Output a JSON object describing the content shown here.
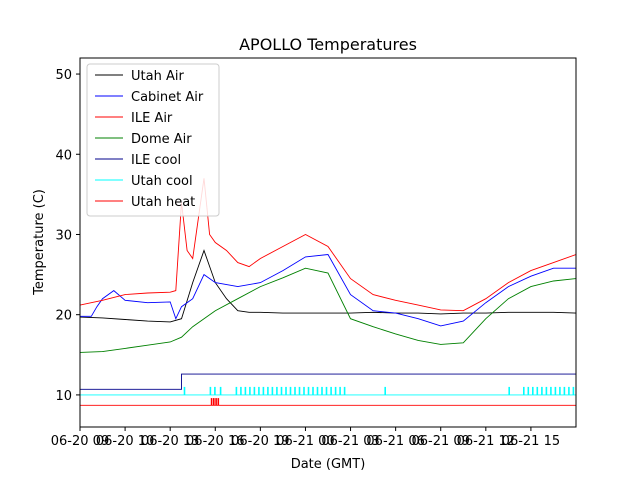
{
  "chart_data": {
    "type": "line",
    "title": "APOLLO Temperatures",
    "xlabel": "Date (GMT)",
    "ylabel": "Temperature (C)",
    "xlim": [
      0,
      44
    ],
    "ylim": [
      6,
      52
    ],
    "y_ticks": [
      10,
      20,
      30,
      40,
      50
    ],
    "x_tick_positions": [
      0,
      4,
      8,
      12,
      16,
      20,
      24,
      28,
      32,
      36,
      40
    ],
    "x_tick_labels": [
      "06-20 09",
      "06-20 10",
      "06-20 13",
      "06-20 16",
      "06-20 19",
      "06-21 00",
      "06-21 03",
      "06-21 06",
      "06-21 09",
      "06-21 12",
      "06-21 15"
    ],
    "x_tick_labels_note": "x_units_are_hours_from_start",
    "legend_position": "upper-left",
    "series": [
      {
        "name": "Utah Air",
        "color": "#000000",
        "x": [
          0,
          2,
          4,
          6,
          8,
          9,
          10,
          11,
          12,
          13,
          14,
          15,
          16,
          18,
          20,
          22,
          24,
          26,
          28,
          30,
          32,
          34,
          36,
          38,
          40,
          42,
          44
        ],
        "y": [
          19.7,
          19.6,
          19.4,
          19.2,
          19.1,
          19.5,
          24,
          28,
          24,
          22,
          20.5,
          20.3,
          20.3,
          20.2,
          20.2,
          20.2,
          20.2,
          20.3,
          20.2,
          20.2,
          20.1,
          20.2,
          20.2,
          20.3,
          20.3,
          20.3,
          20.2
        ]
      },
      {
        "name": "Cabinet Air",
        "color": "#0000ff",
        "x": [
          0,
          1,
          1.5,
          2,
          3,
          4,
          6,
          8,
          8.5,
          9,
          10,
          11,
          12,
          14,
          16,
          18,
          20,
          22,
          24,
          26,
          28,
          30,
          32,
          34,
          36,
          38,
          40,
          42,
          44
        ],
        "y": [
          19.8,
          19.8,
          21,
          22,
          23,
          21.8,
          21.5,
          21.6,
          19.5,
          21,
          22,
          25,
          24,
          23.5,
          24,
          25.5,
          27.2,
          27.5,
          22.5,
          20.5,
          20.2,
          19.5,
          18.6,
          19.2,
          21.5,
          23.5,
          24.8,
          25.8,
          25.8
        ]
      },
      {
        "name": "ILE Air",
        "color": "#ff0000",
        "x": [
          0,
          2,
          4,
          6,
          8,
          8.5,
          9,
          9.5,
          10,
          11,
          11.5,
          12,
          13,
          14,
          15,
          16,
          18,
          20,
          22,
          24,
          26,
          28,
          30,
          32,
          34,
          36,
          38,
          40,
          42,
          44
        ],
        "y": [
          21.2,
          21.8,
          22.5,
          22.7,
          22.8,
          23,
          34,
          28,
          27,
          37,
          30,
          29,
          28,
          26.5,
          26,
          27,
          28.5,
          30,
          28.5,
          24.5,
          22.5,
          21.8,
          21.2,
          20.6,
          20.5,
          22,
          24,
          25.5,
          26.5,
          27.5
        ]
      },
      {
        "name": "Dome Air",
        "color": "#008000",
        "x": [
          0,
          2,
          4,
          6,
          8,
          9,
          10,
          12,
          14,
          16,
          18,
          20,
          22,
          24,
          26,
          28,
          30,
          32,
          34,
          36,
          38,
          40,
          42,
          44
        ],
        "y": [
          15.3,
          15.4,
          15.8,
          16.2,
          16.6,
          17.2,
          18.5,
          20.5,
          22,
          23.5,
          24.6,
          25.8,
          25.2,
          19.5,
          18.5,
          17.6,
          16.8,
          16.3,
          16.5,
          19.5,
          22,
          23.5,
          24.2,
          24.5
        ]
      },
      {
        "name": "ILE cool",
        "color": "#00008b",
        "x": [
          0,
          9,
          9,
          44
        ],
        "y": [
          10.7,
          10.7,
          12.6,
          12.6
        ]
      },
      {
        "name": "Utah cool",
        "color": "#00ffff",
        "x": [
          0,
          44
        ],
        "y": [
          10,
          10
        ],
        "pulses": [
          9.2,
          11.5,
          11.9,
          12.4,
          13.8,
          14.2,
          14.6,
          15.0,
          15.4,
          15.8,
          16.2,
          16.6,
          17.0,
          17.4,
          17.8,
          18.2,
          18.6,
          19.0,
          19.4,
          19.8,
          20.2,
          20.6,
          21.0,
          21.4,
          21.8,
          22.2,
          22.6,
          23.0,
          23.4,
          27.0,
          38.0,
          39.3,
          39.7,
          40.1,
          40.5,
          40.9,
          41.3,
          41.7,
          42.1,
          42.5,
          42.9,
          43.3,
          43.7
        ],
        "pulse_top": 11
      },
      {
        "name": "Utah heat",
        "color": "#ff0000",
        "x": [
          0,
          44
        ],
        "y": [
          8.7,
          8.7
        ],
        "pulses": [
          11.6,
          11.8,
          12.0,
          12.2
        ],
        "pulse_top": 9.6
      }
    ]
  }
}
